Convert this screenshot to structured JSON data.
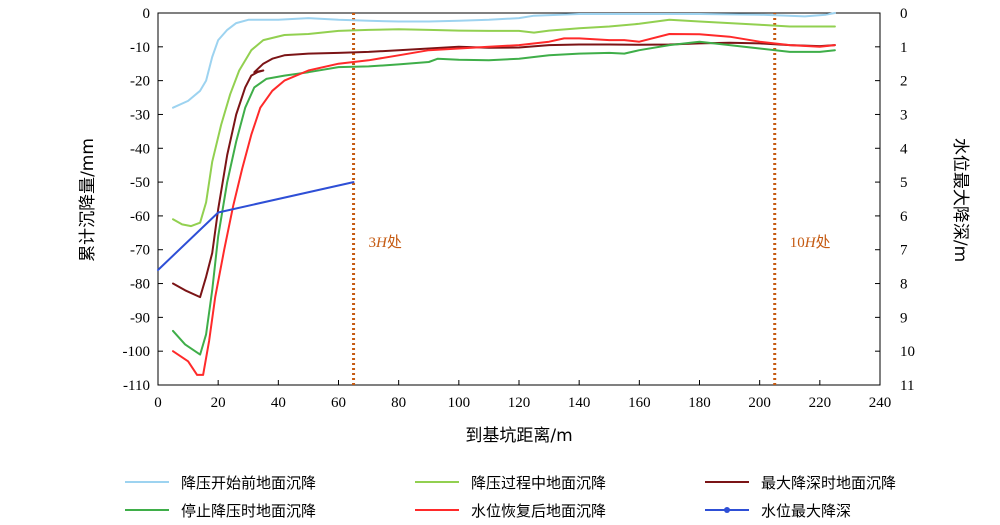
{
  "chart_data": {
    "type": "line",
    "xlabel": "到基坑距离/m",
    "ylabel": "累计沉降量/mm",
    "y2label": "水位最大降深/m",
    "xlim": [
      0,
      240
    ],
    "xticks": [
      0,
      20,
      40,
      60,
      80,
      100,
      120,
      140,
      160,
      180,
      200,
      220,
      240
    ],
    "ylim": [
      -110,
      0
    ],
    "yticks": [
      0,
      -10,
      -20,
      -30,
      -40,
      -50,
      -60,
      -70,
      -80,
      -90,
      -100,
      -110
    ],
    "y2lim": [
      11,
      0
    ],
    "y2ticks": [
      0,
      1,
      2,
      3,
      4,
      5,
      6,
      7,
      8,
      9,
      10,
      11
    ],
    "grid": false,
    "legend_position": "bottom",
    "vlines": [
      {
        "x": 65,
        "label_prefix": "3",
        "label_italic": "H",
        "label_suffix": "处",
        "color": "#c55a11"
      },
      {
        "x": 205,
        "label_prefix": "10",
        "label_italic": "H",
        "label_suffix": "处",
        "color": "#c55a11"
      }
    ],
    "series": [
      {
        "name": "降压开始前地面沉降",
        "color": "#9dd3f0",
        "axis": "left",
        "points": [
          [
            5,
            -28
          ],
          [
            10,
            -26
          ],
          [
            14,
            -23
          ],
          [
            16,
            -20
          ],
          [
            18,
            -13
          ],
          [
            20,
            -8
          ],
          [
            23,
            -5
          ],
          [
            26,
            -3
          ],
          [
            30,
            -2
          ],
          [
            40,
            -2
          ],
          [
            50,
            -1.5
          ],
          [
            60,
            -2
          ],
          [
            70,
            -2.3
          ],
          [
            80,
            -2.5
          ],
          [
            90,
            -2.5
          ],
          [
            100,
            -2.3
          ],
          [
            110,
            -2
          ],
          [
            120,
            -1.5
          ],
          [
            125,
            -0.8
          ],
          [
            140,
            -0.3
          ],
          [
            160,
            -0.3
          ],
          [
            180,
            -0.3
          ],
          [
            200,
            -0.5
          ],
          [
            215,
            -1
          ],
          [
            222,
            -0.5
          ],
          [
            225,
            0
          ]
        ]
      },
      {
        "name": "降压过程中地面沉降",
        "color": "#92d050",
        "axis": "left",
        "points": [
          [
            5,
            -61
          ],
          [
            8,
            -62.5
          ],
          [
            11,
            -63
          ],
          [
            14,
            -62
          ],
          [
            16,
            -56
          ],
          [
            18,
            -44
          ],
          [
            21,
            -33
          ],
          [
            24,
            -24
          ],
          [
            27,
            -17
          ],
          [
            31,
            -11
          ],
          [
            35,
            -8
          ],
          [
            42,
            -6.5
          ],
          [
            50,
            -6.2
          ],
          [
            60,
            -5.3
          ],
          [
            70,
            -5
          ],
          [
            80,
            -4.8
          ],
          [
            90,
            -5
          ],
          [
            100,
            -5.2
          ],
          [
            110,
            -5.3
          ],
          [
            120,
            -5.3
          ],
          [
            125,
            -5.8
          ],
          [
            130,
            -5.2
          ],
          [
            140,
            -4.5
          ],
          [
            150,
            -4
          ],
          [
            160,
            -3.2
          ],
          [
            170,
            -2
          ],
          [
            180,
            -2.5
          ],
          [
            190,
            -3
          ],
          [
            200,
            -3.5
          ],
          [
            210,
            -4
          ],
          [
            225,
            -4
          ]
        ]
      },
      {
        "name": "最大降深时地面沉降",
        "color": "#7b1416",
        "axis": "left",
        "points": [
          [
            5,
            -80
          ],
          [
            9,
            -82
          ],
          [
            14,
            -84
          ],
          [
            16,
            -78
          ],
          [
            18,
            -71
          ],
          [
            20,
            -58
          ],
          [
            23,
            -42
          ],
          [
            26,
            -30
          ],
          [
            29,
            -22
          ],
          [
            31,
            -18.5
          ],
          [
            33,
            -17.5
          ],
          [
            35,
            -17
          ],
          [
            32,
            -17.5
          ],
          [
            35,
            -15
          ],
          [
            38,
            -13.5
          ],
          [
            42,
            -12.5
          ],
          [
            50,
            -12
          ],
          [
            60,
            -11.8
          ],
          [
            70,
            -11.5
          ],
          [
            80,
            -11
          ],
          [
            90,
            -10.5
          ],
          [
            100,
            -10
          ],
          [
            110,
            -10.3
          ],
          [
            120,
            -10.2
          ],
          [
            130,
            -9.5
          ],
          [
            140,
            -9.3
          ],
          [
            150,
            -9.3
          ],
          [
            160,
            -9.4
          ],
          [
            170,
            -9.3
          ],
          [
            180,
            -9
          ],
          [
            190,
            -8.8
          ],
          [
            200,
            -9
          ],
          [
            210,
            -9.5
          ],
          [
            220,
            -9.8
          ],
          [
            225,
            -9.5
          ]
        ]
      },
      {
        "name": "停止降压时地面沉降",
        "color": "#3fae49",
        "axis": "left",
        "points": [
          [
            5,
            -94
          ],
          [
            9,
            -98
          ],
          [
            14,
            -101
          ],
          [
            16,
            -95
          ],
          [
            18,
            -82
          ],
          [
            20,
            -66
          ],
          [
            23,
            -50
          ],
          [
            26,
            -38
          ],
          [
            29,
            -28
          ],
          [
            32,
            -22
          ],
          [
            36,
            -19.5
          ],
          [
            42,
            -18.5
          ],
          [
            50,
            -17.5
          ],
          [
            60,
            -16
          ],
          [
            70,
            -15.8
          ],
          [
            80,
            -15.2
          ],
          [
            90,
            -14.5
          ],
          [
            93,
            -13.5
          ],
          [
            100,
            -13.8
          ],
          [
            110,
            -14
          ],
          [
            120,
            -13.5
          ],
          [
            125,
            -13
          ],
          [
            130,
            -12.5
          ],
          [
            140,
            -12
          ],
          [
            150,
            -11.8
          ],
          [
            155,
            -12
          ],
          [
            160,
            -11
          ],
          [
            170,
            -9.5
          ],
          [
            180,
            -8.5
          ],
          [
            190,
            -9.5
          ],
          [
            200,
            -10.5
          ],
          [
            210,
            -11.5
          ],
          [
            220,
            -11.5
          ],
          [
            225,
            -11
          ]
        ]
      },
      {
        "name": "水位恢复后地面沉降",
        "color": "#ff2a2a",
        "axis": "left",
        "points": [
          [
            5,
            -100
          ],
          [
            10,
            -103
          ],
          [
            13,
            -107
          ],
          [
            15,
            -107
          ],
          [
            17,
            -97
          ],
          [
            19,
            -84
          ],
          [
            22,
            -70
          ],
          [
            25,
            -57
          ],
          [
            28,
            -46
          ],
          [
            31,
            -36
          ],
          [
            34,
            -28
          ],
          [
            38,
            -23
          ],
          [
            42,
            -20
          ],
          [
            50,
            -17
          ],
          [
            60,
            -15
          ],
          [
            70,
            -14
          ],
          [
            80,
            -12.5
          ],
          [
            90,
            -11
          ],
          [
            100,
            -10.5
          ],
          [
            110,
            -10
          ],
          [
            120,
            -9.5
          ],
          [
            130,
            -8.5
          ],
          [
            135,
            -7.5
          ],
          [
            140,
            -7.5
          ],
          [
            150,
            -8
          ],
          [
            155,
            -8
          ],
          [
            160,
            -8.5
          ],
          [
            170,
            -6.2
          ],
          [
            180,
            -6.3
          ],
          [
            190,
            -7
          ],
          [
            200,
            -8.5
          ],
          [
            210,
            -9.5
          ],
          [
            220,
            -10
          ],
          [
            225,
            -9.5
          ]
        ]
      },
      {
        "name": "水位最大降深",
        "color": "#2e4fd6",
        "axis": "right",
        "marker": "dot",
        "points": [
          [
            0,
            7.6
          ],
          [
            20,
            5.9
          ],
          [
            65,
            5
          ]
        ]
      }
    ]
  },
  "legend": {
    "items": [
      {
        "label": "降压开始前地面沉降",
        "color": "#9dd3f0",
        "marker": false
      },
      {
        "label": "降压过程中地面沉降",
        "color": "#92d050",
        "marker": false
      },
      {
        "label": "最大降深时地面沉降",
        "color": "#7b1416",
        "marker": false
      },
      {
        "label": "停止降压时地面沉降",
        "color": "#3fae49",
        "marker": false
      },
      {
        "label": "水位恢复后地面沉降",
        "color": "#ff2a2a",
        "marker": false
      },
      {
        "label": "水位最大降深",
        "color": "#2e4fd6",
        "marker": true
      }
    ]
  }
}
